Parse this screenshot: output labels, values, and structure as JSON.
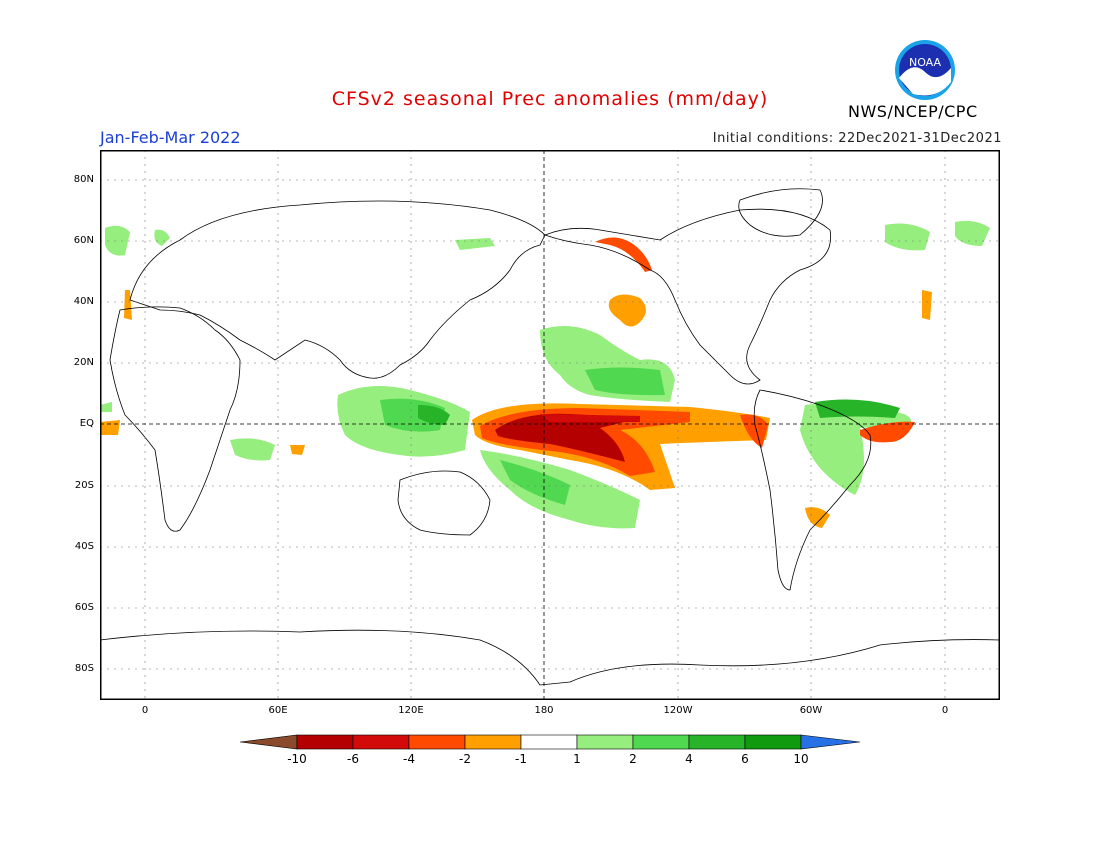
{
  "header": {
    "title": "CFSv2 seasonal Prec anomalies (mm/day)",
    "period": "Jan-Feb-Mar 2022",
    "initial_conditions": "Initial conditions: 22Dec2021-31Dec2021",
    "agency": "NWS/NCEP/CPC",
    "logo_text": "NOAA"
  },
  "map": {
    "lat_labels": [
      "80N",
      "60N",
      "40N",
      "20N",
      "EQ",
      "20S",
      "40S",
      "60S",
      "80S"
    ],
    "lon_labels": [
      "0",
      "60E",
      "120E",
      "180",
      "120W",
      "60W",
      "0"
    ]
  },
  "colorbar": {
    "labels": [
      "-10",
      "-6",
      "-4",
      "-2",
      "-1",
      "1",
      "2",
      "4",
      "6",
      "10"
    ],
    "colors": [
      "#8b4a2b",
      "#b40000",
      "#d20a0a",
      "#ff4a00",
      "#ff9f00",
      "#ffffff",
      "#96ee7e",
      "#50d850",
      "#28b428",
      "#109a10",
      "#2870e6"
    ]
  }
}
